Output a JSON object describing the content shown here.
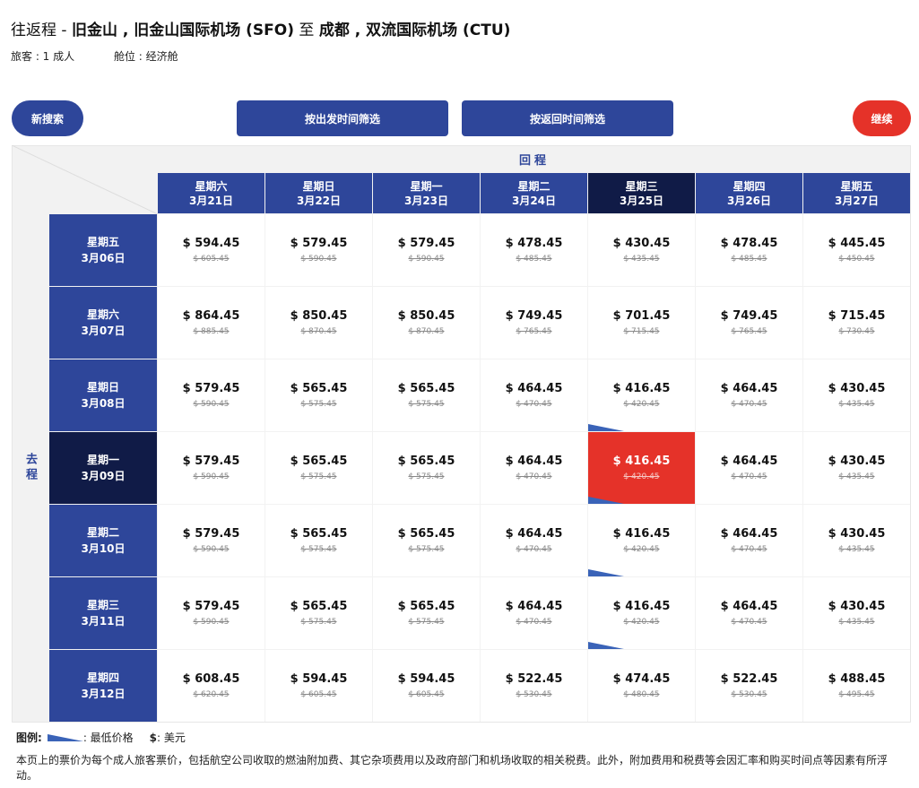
{
  "header": {
    "trip_type": "往返程 - ",
    "origin": "旧金山 , 旧金山国际机场 (SFO)",
    "to": " 至 ",
    "destination": "成都 , 双流国际机场 (CTU)",
    "passengers": "旅客 : 1 成人",
    "cabin": "舱位 : 经济舱"
  },
  "buttons": {
    "new_search": "新搜索",
    "filter_departure": "按出发时间筛选",
    "filter_return": "按返回时间筛选",
    "continue": "继续"
  },
  "grid": {
    "return_label": "回程",
    "departure_label": "去程",
    "columns": [
      {
        "weekday": "星期六",
        "date": "3月21日",
        "selected": false
      },
      {
        "weekday": "星期日",
        "date": "3月22日",
        "selected": false
      },
      {
        "weekday": "星期一",
        "date": "3月23日",
        "selected": false
      },
      {
        "weekday": "星期二",
        "date": "3月24日",
        "selected": false
      },
      {
        "weekday": "星期三",
        "date": "3月25日",
        "selected": true
      },
      {
        "weekday": "星期四",
        "date": "3月26日",
        "selected": false
      },
      {
        "weekday": "星期五",
        "date": "3月27日",
        "selected": false
      }
    ],
    "rows": [
      {
        "weekday": "星期五",
        "date": "3月06日",
        "selected": false,
        "cells": [
          [
            "$ 594.45",
            "$ 605.45"
          ],
          [
            "$ 579.45",
            "$ 590.45"
          ],
          [
            "$ 579.45",
            "$ 590.45"
          ],
          [
            "$ 478.45",
            "$ 485.45"
          ],
          [
            "$ 430.45",
            "$ 435.45"
          ],
          [
            "$ 478.45",
            "$ 485.45"
          ],
          [
            "$ 445.45",
            "$ 450.45"
          ]
        ]
      },
      {
        "weekday": "星期六",
        "date": "3月07日",
        "selected": false,
        "cells": [
          [
            "$ 864.45",
            "$ 885.45"
          ],
          [
            "$ 850.45",
            "$ 870.45"
          ],
          [
            "$ 850.45",
            "$ 870.45"
          ],
          [
            "$ 749.45",
            "$ 765.45"
          ],
          [
            "$ 701.45",
            "$ 715.45"
          ],
          [
            "$ 749.45",
            "$ 765.45"
          ],
          [
            "$ 715.45",
            "$ 730.45"
          ]
        ]
      },
      {
        "weekday": "星期日",
        "date": "3月08日",
        "selected": false,
        "cells": [
          [
            "$ 579.45",
            "$ 590.45"
          ],
          [
            "$ 565.45",
            "$ 575.45"
          ],
          [
            "$ 565.45",
            "$ 575.45"
          ],
          [
            "$ 464.45",
            "$ 470.45"
          ],
          [
            "$ 416.45",
            "$ 420.45"
          ],
          [
            "$ 464.45",
            "$ 470.45"
          ],
          [
            "$ 430.45",
            "$ 435.45"
          ]
        ]
      },
      {
        "weekday": "星期一",
        "date": "3月09日",
        "selected": true,
        "cells": [
          [
            "$ 579.45",
            "$ 590.45"
          ],
          [
            "$ 565.45",
            "$ 575.45"
          ],
          [
            "$ 565.45",
            "$ 575.45"
          ],
          [
            "$ 464.45",
            "$ 470.45"
          ],
          [
            "$ 416.45",
            "$ 420.45"
          ],
          [
            "$ 464.45",
            "$ 470.45"
          ],
          [
            "$ 430.45",
            "$ 435.45"
          ]
        ]
      },
      {
        "weekday": "星期二",
        "date": "3月10日",
        "selected": false,
        "cells": [
          [
            "$ 579.45",
            "$ 590.45"
          ],
          [
            "$ 565.45",
            "$ 575.45"
          ],
          [
            "$ 565.45",
            "$ 575.45"
          ],
          [
            "$ 464.45",
            "$ 470.45"
          ],
          [
            "$ 416.45",
            "$ 420.45"
          ],
          [
            "$ 464.45",
            "$ 470.45"
          ],
          [
            "$ 430.45",
            "$ 435.45"
          ]
        ]
      },
      {
        "weekday": "星期三",
        "date": "3月11日",
        "selected": false,
        "cells": [
          [
            "$ 579.45",
            "$ 590.45"
          ],
          [
            "$ 565.45",
            "$ 575.45"
          ],
          [
            "$ 565.45",
            "$ 575.45"
          ],
          [
            "$ 464.45",
            "$ 470.45"
          ],
          [
            "$ 416.45",
            "$ 420.45"
          ],
          [
            "$ 464.45",
            "$ 470.45"
          ],
          [
            "$ 430.45",
            "$ 435.45"
          ]
        ]
      },
      {
        "weekday": "星期四",
        "date": "3月12日",
        "selected": false,
        "cells": [
          [
            "$ 608.45",
            "$ 620.45"
          ],
          [
            "$ 594.45",
            "$ 605.45"
          ],
          [
            "$ 594.45",
            "$ 605.45"
          ],
          [
            "$ 522.45",
            "$ 530.45"
          ],
          [
            "$ 474.45",
            "$ 480.45"
          ],
          [
            "$ 522.45",
            "$ 530.45"
          ],
          [
            "$ 488.45",
            "$ 495.45"
          ]
        ]
      }
    ],
    "lowest_price_cells": [
      [
        2,
        4
      ],
      [
        3,
        4
      ],
      [
        4,
        4
      ],
      [
        5,
        4
      ]
    ]
  },
  "legend": {
    "label": "图例:",
    "lowest_price": ": 最低价格",
    "currency_symbol": "$",
    "currency": ": 美元"
  },
  "colors": {
    "primary": "#2e469a",
    "selected_dark": "#101b47",
    "accent_red": "#e53229"
  },
  "note": "本页上的票价为每个成人旅客票价，包括航空公司收取的燃油附加费、其它杂项费用以及政府部门和机场收取的相关税费。此外，附加费用和税费等会因汇率和购买时间点等因素有所浮动。"
}
